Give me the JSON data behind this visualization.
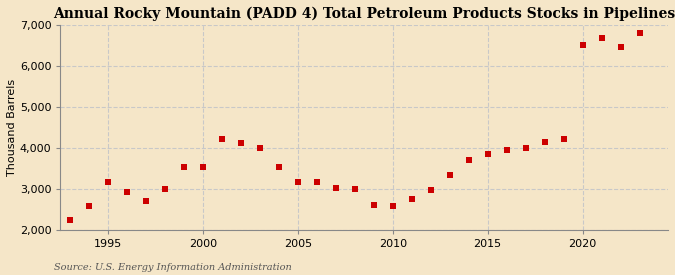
{
  "title": "Annual Rocky Mountain (PADD 4) Total Petroleum Products Stocks in Pipelines",
  "ylabel": "Thousand Barrels",
  "source": "Source: U.S. Energy Information Administration",
  "background_color": "#f5e6c8",
  "plot_bg_color": "#f5e6c8",
  "dot_color": "#cc0000",
  "years": [
    1993,
    1994,
    1995,
    1996,
    1997,
    1998,
    1999,
    2000,
    2001,
    2002,
    2003,
    2004,
    2005,
    2006,
    2007,
    2008,
    2009,
    2010,
    2011,
    2012,
    2013,
    2014,
    2015,
    2016,
    2017,
    2018,
    2019,
    2020,
    2021,
    2022,
    2023
  ],
  "values": [
    2230,
    2570,
    3170,
    2930,
    2710,
    2990,
    3530,
    3530,
    4210,
    4130,
    4010,
    3530,
    3160,
    3160,
    3020,
    3000,
    2600,
    2590,
    2760,
    2980,
    3340,
    3700,
    3860,
    3960,
    4000,
    4140,
    4220,
    6530,
    6680,
    6460,
    6800
  ],
  "ylim": [
    2000,
    7000
  ],
  "yticks": [
    2000,
    3000,
    4000,
    5000,
    6000,
    7000
  ],
  "xlim": [
    1992.5,
    2024.5
  ],
  "xticks": [
    1995,
    2000,
    2005,
    2010,
    2015,
    2020
  ],
  "grid_color": "#c8c8c8",
  "spine_color": "#888888",
  "title_fontsize": 10,
  "label_fontsize": 8,
  "tick_fontsize": 8,
  "source_fontsize": 7
}
